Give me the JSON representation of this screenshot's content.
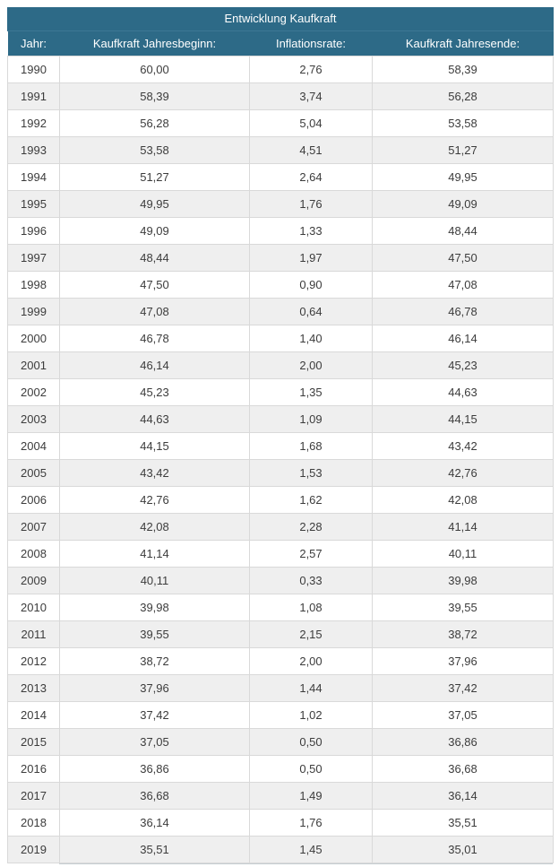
{
  "table": {
    "title": "Entwicklung Kaufkraft",
    "columns": [
      "Jahr:",
      "Kaufkraft Jahresbeginn:",
      "Inflationsrate:",
      "Kaufkraft Jahresende:"
    ],
    "rows": [
      [
        "1990",
        "60,00",
        "2,76",
        "58,39"
      ],
      [
        "1991",
        "58,39",
        "3,74",
        "56,28"
      ],
      [
        "1992",
        "56,28",
        "5,04",
        "53,58"
      ],
      [
        "1993",
        "53,58",
        "4,51",
        "51,27"
      ],
      [
        "1994",
        "51,27",
        "2,64",
        "49,95"
      ],
      [
        "1995",
        "49,95",
        "1,76",
        "49,09"
      ],
      [
        "1996",
        "49,09",
        "1,33",
        "48,44"
      ],
      [
        "1997",
        "48,44",
        "1,97",
        "47,50"
      ],
      [
        "1998",
        "47,50",
        "0,90",
        "47,08"
      ],
      [
        "1999",
        "47,08",
        "0,64",
        "46,78"
      ],
      [
        "2000",
        "46,78",
        "1,40",
        "46,14"
      ],
      [
        "2001",
        "46,14",
        "2,00",
        "45,23"
      ],
      [
        "2002",
        "45,23",
        "1,35",
        "44,63"
      ],
      [
        "2003",
        "44,63",
        "1,09",
        "44,15"
      ],
      [
        "2004",
        "44,15",
        "1,68",
        "43,42"
      ],
      [
        "2005",
        "43,42",
        "1,53",
        "42,76"
      ],
      [
        "2006",
        "42,76",
        "1,62",
        "42,08"
      ],
      [
        "2007",
        "42,08",
        "2,28",
        "41,14"
      ],
      [
        "2008",
        "41,14",
        "2,57",
        "40,11"
      ],
      [
        "2009",
        "40,11",
        "0,33",
        "39,98"
      ],
      [
        "2010",
        "39,98",
        "1,08",
        "39,55"
      ],
      [
        "2011",
        "39,55",
        "2,15",
        "38,72"
      ],
      [
        "2012",
        "38,72",
        "2,00",
        "37,96"
      ],
      [
        "2013",
        "37,96",
        "1,44",
        "37,42"
      ],
      [
        "2014",
        "37,42",
        "1,02",
        "37,05"
      ],
      [
        "2015",
        "37,05",
        "0,50",
        "36,86"
      ],
      [
        "2016",
        "36,86",
        "0,50",
        "36,68"
      ],
      [
        "2017",
        "36,68",
        "1,49",
        "36,14"
      ],
      [
        "2018",
        "36,14",
        "1,76",
        "35,51"
      ],
      [
        "2019",
        "35,51",
        "1,45",
        "35,01"
      ]
    ]
  },
  "colors": {
    "header_bg": "#2d6a87",
    "header_text": "#ffffff",
    "row_bg": "#ffffff",
    "row_alt_bg": "#efefef",
    "cell_border": "#d9d9d9",
    "cell_text": "#3c3c3c"
  },
  "chart_data": {
    "type": "table",
    "title": "Entwicklung Kaufkraft",
    "columns": [
      "Jahr:",
      "Kaufkraft Jahresbeginn:",
      "Inflationsrate:",
      "Kaufkraft Jahresende:"
    ],
    "x": [
      1990,
      1991,
      1992,
      1993,
      1994,
      1995,
      1996,
      1997,
      1998,
      1999,
      2000,
      2001,
      2002,
      2003,
      2004,
      2005,
      2006,
      2007,
      2008,
      2009,
      2010,
      2011,
      2012,
      2013,
      2014,
      2015,
      2016,
      2017,
      2018,
      2019
    ],
    "series": [
      {
        "name": "Kaufkraft Jahresbeginn",
        "values": [
          60.0,
          58.39,
          56.28,
          53.58,
          51.27,
          49.95,
          49.09,
          48.44,
          47.5,
          47.08,
          46.78,
          46.14,
          45.23,
          44.63,
          44.15,
          43.42,
          42.76,
          42.08,
          41.14,
          40.11,
          39.98,
          39.55,
          38.72,
          37.96,
          37.42,
          37.05,
          36.86,
          36.68,
          36.14,
          35.51
        ]
      },
      {
        "name": "Inflationsrate",
        "values": [
          2.76,
          3.74,
          5.04,
          4.51,
          2.64,
          1.76,
          1.33,
          1.97,
          0.9,
          0.64,
          1.4,
          2.0,
          1.35,
          1.09,
          1.68,
          1.53,
          1.62,
          2.28,
          2.57,
          0.33,
          1.08,
          2.15,
          2.0,
          1.44,
          1.02,
          0.5,
          0.5,
          1.49,
          1.76,
          1.45
        ]
      },
      {
        "name": "Kaufkraft Jahresende",
        "values": [
          58.39,
          56.28,
          53.58,
          51.27,
          49.95,
          49.09,
          48.44,
          47.5,
          47.08,
          46.78,
          46.14,
          45.23,
          44.63,
          44.15,
          43.42,
          42.76,
          42.08,
          41.14,
          40.11,
          39.98,
          39.55,
          38.72,
          37.96,
          37.42,
          37.05,
          36.86,
          36.68,
          36.14,
          35.51,
          35.01
        ]
      }
    ],
    "number_format": "de-DE (comma decimal separator)"
  }
}
